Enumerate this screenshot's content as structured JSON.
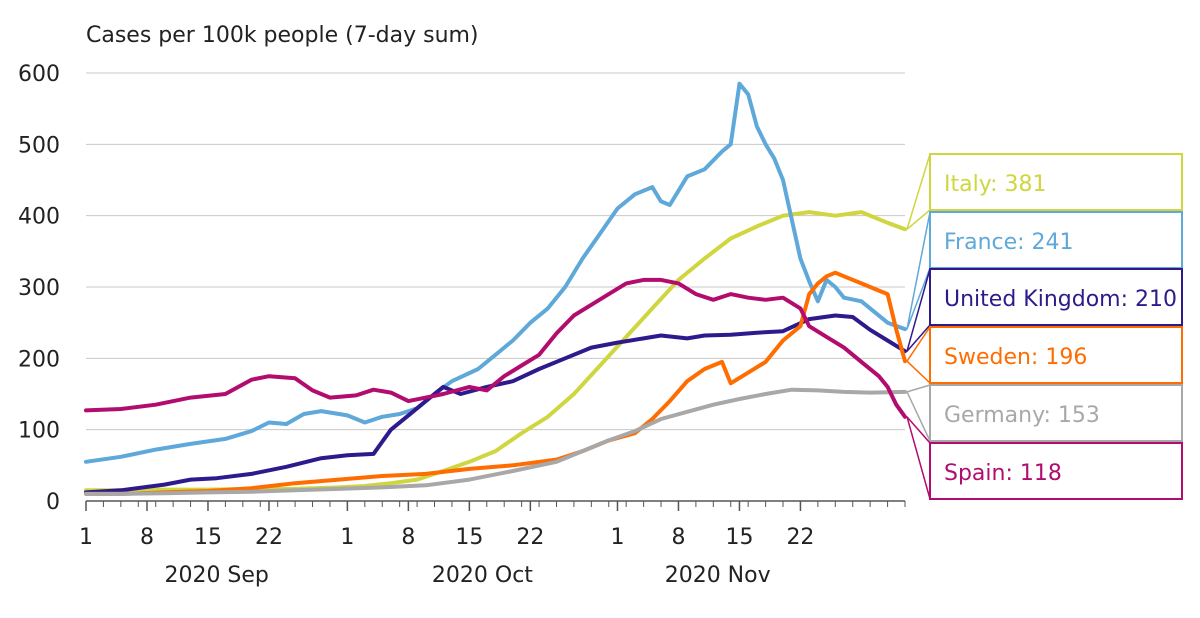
{
  "chart_data": {
    "type": "line",
    "title": "Cases per 100k people (7-day sum)",
    "ylim": [
      0,
      600
    ],
    "yticks": [
      0,
      100,
      200,
      300,
      400,
      500,
      600
    ],
    "x_tick_days": [
      1,
      8,
      15,
      22,
      31,
      38,
      45,
      52,
      62,
      69,
      76,
      83
    ],
    "x_tick_labels": [
      "1",
      "8",
      "15",
      "22",
      "1",
      "8",
      "15",
      "22",
      "1",
      "8",
      "15",
      "22"
    ],
    "month_labels": [
      {
        "day": 16,
        "label": "2020 Sep"
      },
      {
        "day": 46.5,
        "label": "2020 Oct"
      },
      {
        "day": 73.5,
        "label": "2020 Nov"
      }
    ],
    "grid": true,
    "legend": "right-end-labels",
    "series": [
      {
        "name": "Italy",
        "label": "Italy: 381",
        "color": "#cfd640",
        "points": [
          [
            1,
            15
          ],
          [
            5,
            15
          ],
          [
            10,
            16
          ],
          [
            15,
            16
          ],
          [
            20,
            17
          ],
          [
            25,
            17
          ],
          [
            30,
            19
          ],
          [
            33,
            21
          ],
          [
            36,
            25
          ],
          [
            39,
            30
          ],
          [
            42,
            42
          ],
          [
            45,
            55
          ],
          [
            48,
            70
          ],
          [
            51,
            95
          ],
          [
            54,
            118
          ],
          [
            57,
            150
          ],
          [
            60,
            190
          ],
          [
            63,
            230
          ],
          [
            66,
            270
          ],
          [
            69,
            310
          ],
          [
            72,
            340
          ],
          [
            75,
            368
          ],
          [
            78,
            385
          ],
          [
            81,
            400
          ],
          [
            84,
            405
          ],
          [
            87,
            400
          ],
          [
            90,
            405
          ],
          [
            93,
            390
          ],
          [
            95,
            381
          ]
        ]
      },
      {
        "name": "France",
        "label": "France: 241",
        "color": "#5fa8da",
        "points": [
          [
            1,
            55
          ],
          [
            5,
            62
          ],
          [
            9,
            72
          ],
          [
            13,
            80
          ],
          [
            17,
            87
          ],
          [
            20,
            98
          ],
          [
            22,
            110
          ],
          [
            24,
            108
          ],
          [
            26,
            122
          ],
          [
            28,
            126
          ],
          [
            31,
            120
          ],
          [
            33,
            110
          ],
          [
            35,
            118
          ],
          [
            37,
            122
          ],
          [
            39,
            130
          ],
          [
            41,
            150
          ],
          [
            43,
            168
          ],
          [
            46,
            185
          ],
          [
            48,
            205
          ],
          [
            50,
            225
          ],
          [
            52,
            250
          ],
          [
            54,
            270
          ],
          [
            56,
            300
          ],
          [
            58,
            340
          ],
          [
            60,
            375
          ],
          [
            62,
            410
          ],
          [
            64,
            430
          ],
          [
            66,
            440
          ],
          [
            67,
            420
          ],
          [
            68,
            415
          ],
          [
            70,
            455
          ],
          [
            72,
            465
          ],
          [
            74,
            490
          ],
          [
            75,
            500
          ],
          [
            76,
            585
          ],
          [
            77,
            570
          ],
          [
            78,
            525
          ],
          [
            79,
            500
          ],
          [
            80,
            480
          ],
          [
            81,
            450
          ],
          [
            82,
            395
          ],
          [
            83,
            340
          ],
          [
            84,
            308
          ],
          [
            85,
            280
          ],
          [
            86,
            310
          ],
          [
            87,
            300
          ],
          [
            88,
            285
          ],
          [
            90,
            280
          ],
          [
            93,
            250
          ],
          [
            95,
            241
          ]
        ]
      },
      {
        "name": "United Kingdom",
        "label": "United Kingdom: 210",
        "color": "#2e1a8c",
        "points": [
          [
            1,
            12
          ],
          [
            5,
            15
          ],
          [
            10,
            23
          ],
          [
            13,
            30
          ],
          [
            16,
            32
          ],
          [
            20,
            38
          ],
          [
            24,
            48
          ],
          [
            28,
            60
          ],
          [
            31,
            64
          ],
          [
            34,
            66
          ],
          [
            36,
            100
          ],
          [
            38,
            120
          ],
          [
            40,
            140
          ],
          [
            42,
            160
          ],
          [
            44,
            150
          ],
          [
            47,
            160
          ],
          [
            50,
            168
          ],
          [
            53,
            185
          ],
          [
            56,
            200
          ],
          [
            59,
            215
          ],
          [
            62,
            222
          ],
          [
            65,
            228
          ],
          [
            67,
            232
          ],
          [
            70,
            228
          ],
          [
            72,
            232
          ],
          [
            75,
            233
          ],
          [
            78,
            236
          ],
          [
            81,
            238
          ],
          [
            84,
            255
          ],
          [
            87,
            260
          ],
          [
            89,
            258
          ],
          [
            91,
            240
          ],
          [
            95,
            210
          ]
        ]
      },
      {
        "name": "Sweden",
        "label": "Sweden: 196",
        "color": "#ff6c00",
        "points": [
          [
            1,
            10
          ],
          [
            5,
            10
          ],
          [
            10,
            12
          ],
          [
            15,
            14
          ],
          [
            20,
            18
          ],
          [
            25,
            25
          ],
          [
            30,
            30
          ],
          [
            35,
            35
          ],
          [
            40,
            38
          ],
          [
            45,
            45
          ],
          [
            50,
            50
          ],
          [
            55,
            58
          ],
          [
            58,
            70
          ],
          [
            61,
            85
          ],
          [
            64,
            95
          ],
          [
            66,
            115
          ],
          [
            68,
            140
          ],
          [
            70,
            168
          ],
          [
            72,
            185
          ],
          [
            74,
            195
          ],
          [
            75,
            165
          ],
          [
            77,
            180
          ],
          [
            79,
            195
          ],
          [
            81,
            225
          ],
          [
            83,
            245
          ],
          [
            84,
            290
          ],
          [
            85,
            305
          ],
          [
            86,
            315
          ],
          [
            87,
            320
          ],
          [
            88,
            315
          ],
          [
            90,
            305
          ],
          [
            92,
            295
          ],
          [
            93,
            290
          ],
          [
            94,
            240
          ],
          [
            95,
            196
          ]
        ]
      },
      {
        "name": "Germany",
        "label": "Germany: 153",
        "color": "#a8a8a8",
        "points": [
          [
            1,
            10
          ],
          [
            5,
            10
          ],
          [
            10,
            11
          ],
          [
            15,
            12
          ],
          [
            20,
            13
          ],
          [
            25,
            15
          ],
          [
            30,
            17
          ],
          [
            35,
            19
          ],
          [
            40,
            22
          ],
          [
            45,
            30
          ],
          [
            50,
            42
          ],
          [
            55,
            55
          ],
          [
            58,
            70
          ],
          [
            61,
            85
          ],
          [
            64,
            98
          ],
          [
            67,
            115
          ],
          [
            70,
            125
          ],
          [
            73,
            135
          ],
          [
            76,
            143
          ],
          [
            79,
            150
          ],
          [
            82,
            156
          ],
          [
            85,
            155
          ],
          [
            88,
            153
          ],
          [
            91,
            152
          ],
          [
            95,
            153
          ]
        ]
      },
      {
        "name": "Spain",
        "label": "Spain: 118",
        "color": "#b20c6f",
        "points": [
          [
            1,
            127
          ],
          [
            5,
            129
          ],
          [
            9,
            135
          ],
          [
            13,
            145
          ],
          [
            17,
            150
          ],
          [
            20,
            170
          ],
          [
            22,
            175
          ],
          [
            25,
            172
          ],
          [
            27,
            155
          ],
          [
            29,
            145
          ],
          [
            32,
            148
          ],
          [
            34,
            156
          ],
          [
            36,
            152
          ],
          [
            38,
            140
          ],
          [
            40,
            145
          ],
          [
            42,
            150
          ],
          [
            45,
            160
          ],
          [
            47,
            155
          ],
          [
            49,
            175
          ],
          [
            51,
            190
          ],
          [
            53,
            205
          ],
          [
            55,
            235
          ],
          [
            57,
            260
          ],
          [
            59,
            275
          ],
          [
            61,
            290
          ],
          [
            63,
            305
          ],
          [
            65,
            310
          ],
          [
            67,
            310
          ],
          [
            69,
            305
          ],
          [
            71,
            290
          ],
          [
            73,
            282
          ],
          [
            75,
            290
          ],
          [
            77,
            285
          ],
          [
            79,
            282
          ],
          [
            81,
            285
          ],
          [
            83,
            270
          ],
          [
            84,
            245
          ],
          [
            86,
            230
          ],
          [
            88,
            215
          ],
          [
            90,
            195
          ],
          [
            92,
            175
          ],
          [
            93,
            160
          ],
          [
            94,
            135
          ],
          [
            95,
            118
          ]
        ]
      }
    ]
  }
}
